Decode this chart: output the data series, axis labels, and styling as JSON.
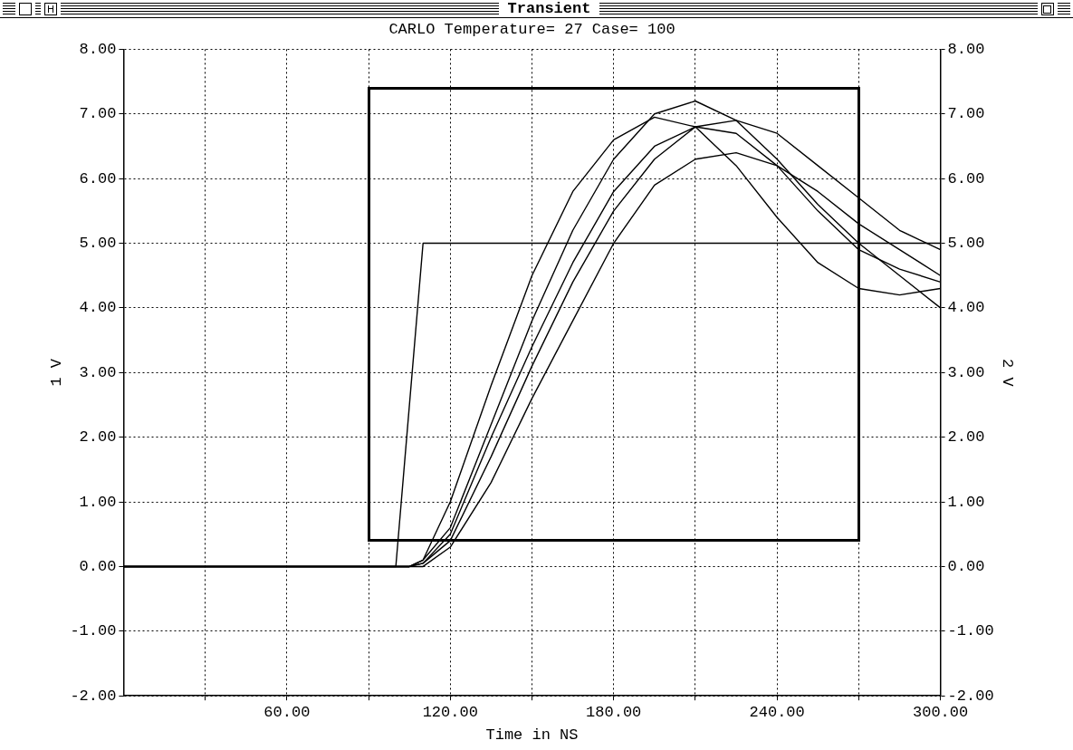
{
  "chart_data": {
    "type": "line",
    "title": "Transient",
    "subtitle": "CARLO Temperature= 27 Case= 100",
    "xlabel": "Time in NS",
    "ylabel": "1 V",
    "y2label": "2 V",
    "xlim": [
      0,
      300
    ],
    "xticks": [
      {
        "value": 30,
        "label": null
      },
      {
        "value": 60,
        "label": "60.00"
      },
      {
        "value": 90,
        "label": null
      },
      {
        "value": 120,
        "label": "120.00"
      },
      {
        "value": 150,
        "label": null
      },
      {
        "value": 180,
        "label": "180.00"
      },
      {
        "value": 210,
        "label": null
      },
      {
        "value": 240,
        "label": "240.00"
      },
      {
        "value": 270,
        "label": null
      },
      {
        "value": 300,
        "label": "300.00"
      }
    ],
    "ylim": [
      -2,
      8
    ],
    "yticks": [
      {
        "value": -2,
        "label": "-2.00"
      },
      {
        "value": -1,
        "label": "-1.00"
      },
      {
        "value": 0,
        "label": "0.00"
      },
      {
        "value": 1,
        "label": "1.00"
      },
      {
        "value": 2,
        "label": "2.00"
      },
      {
        "value": 3,
        "label": "3.00"
      },
      {
        "value": 4,
        "label": "4.00"
      },
      {
        "value": 5,
        "label": "5.00"
      },
      {
        "value": 6,
        "label": "6.00"
      },
      {
        "value": 7,
        "label": "7.00"
      },
      {
        "value": 8,
        "label": "8.00"
      }
    ],
    "y2lim": [
      -2,
      8
    ],
    "y2ticks": [
      {
        "value": -2,
        "label": "-2.00"
      },
      {
        "value": -1,
        "label": "-1.00"
      },
      {
        "value": 0,
        "label": "0.00"
      },
      {
        "value": 1,
        "label": "1.00"
      },
      {
        "value": 2,
        "label": "2.00"
      },
      {
        "value": 3,
        "label": "3.00"
      },
      {
        "value": 4,
        "label": "4.00"
      },
      {
        "value": 5,
        "label": "5.00"
      },
      {
        "value": 6,
        "label": "6.00"
      },
      {
        "value": 7,
        "label": "7.00"
      },
      {
        "value": 8,
        "label": "8.00"
      }
    ],
    "grid": true,
    "legend": false,
    "series": [
      {
        "color": "#000000",
        "x": [
          0,
          100,
          110,
          300
        ],
        "values": [
          0,
          0,
          5,
          5
        ]
      },
      {
        "color": "#000000",
        "x": [
          0,
          105,
          110,
          120,
          135,
          150,
          165,
          180,
          195,
          210,
          225,
          240,
          255,
          270,
          285,
          300
        ],
        "values": [
          0,
          0,
          0.1,
          1.0,
          2.8,
          4.5,
          5.8,
          6.6,
          6.95,
          6.8,
          6.2,
          5.4,
          4.7,
          4.3,
          4.2,
          4.3
        ]
      },
      {
        "color": "#000000",
        "x": [
          0,
          105,
          110,
          120,
          135,
          150,
          165,
          180,
          195,
          210,
          225,
          240,
          255,
          270,
          285,
          300
        ],
        "values": [
          0,
          0,
          0.1,
          0.6,
          2.2,
          3.8,
          5.2,
          6.3,
          7.0,
          7.2,
          6.9,
          6.3,
          5.6,
          5.0,
          4.5,
          4.0
        ]
      },
      {
        "color": "#000000",
        "x": [
          0,
          105,
          110,
          120,
          135,
          150,
          165,
          180,
          195,
          210,
          225,
          240,
          255,
          270,
          285,
          300
        ],
        "values": [
          0,
          0,
          0.05,
          0.5,
          2.0,
          3.4,
          4.7,
          5.8,
          6.5,
          6.8,
          6.7,
          6.2,
          5.5,
          4.9,
          4.6,
          4.4
        ]
      },
      {
        "color": "#000000",
        "x": [
          0,
          105,
          110,
          120,
          135,
          150,
          165,
          180,
          195,
          210,
          225,
          240,
          255,
          270,
          285,
          300
        ],
        "values": [
          0,
          0,
          0.05,
          0.4,
          1.7,
          3.1,
          4.4,
          5.5,
          6.3,
          6.8,
          6.9,
          6.7,
          6.2,
          5.7,
          5.2,
          4.9
        ]
      },
      {
        "color": "#000000",
        "x": [
          0,
          105,
          110,
          120,
          135,
          150,
          165,
          180,
          195,
          210,
          225,
          240,
          255,
          270,
          285,
          300
        ],
        "values": [
          0,
          0,
          0,
          0.3,
          1.3,
          2.6,
          3.8,
          5.0,
          5.9,
          6.3,
          6.4,
          6.2,
          5.8,
          5.3,
          4.9,
          4.5
        ]
      }
    ]
  }
}
